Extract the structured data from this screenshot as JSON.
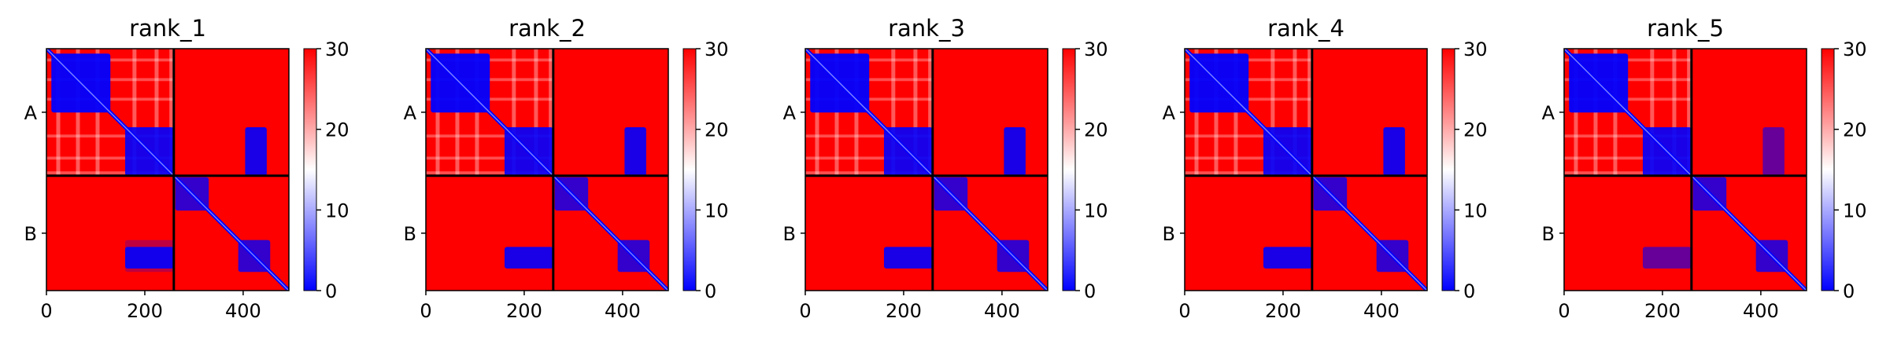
{
  "chart_data": [
    {
      "type": "heatmap",
      "title": "rank_1",
      "xlabel": "",
      "ylabel": "",
      "xlim": [
        0,
        493
      ],
      "x_ticks": [
        0,
        200,
        400
      ],
      "y_tick_labels": [
        "A",
        "B"
      ],
      "chain_break": 259,
      "colorbar": {
        "min": 0,
        "max": 30,
        "ticks": [
          0,
          10,
          20,
          30
        ],
        "colormap": "bwr"
      },
      "blue_blocks": [
        [
          10,
          130,
          10,
          130,
          0.95
        ],
        [
          160,
          259,
          160,
          259,
          0.9
        ],
        [
          262,
          330,
          262,
          330,
          0.8
        ],
        [
          390,
          455,
          390,
          455,
          0.8
        ],
        [
          160,
          259,
          404,
          448,
          0.9
        ],
        [
          404,
          448,
          160,
          259,
          0.9
        ],
        [
          160,
          259,
          390,
          455,
          0.25
        ]
      ],
      "diagonal": true
    },
    {
      "type": "heatmap",
      "title": "rank_2",
      "xlabel": "",
      "ylabel": "",
      "xlim": [
        0,
        493
      ],
      "x_ticks": [
        0,
        200,
        400
      ],
      "y_tick_labels": [
        "A",
        "B"
      ],
      "chain_break": 259,
      "colorbar": {
        "min": 0,
        "max": 30,
        "ticks": [
          0,
          10,
          20,
          30
        ],
        "colormap": "bwr"
      },
      "blue_blocks": [
        [
          10,
          130,
          10,
          130,
          0.95
        ],
        [
          160,
          259,
          160,
          259,
          0.9
        ],
        [
          262,
          330,
          262,
          330,
          0.8
        ],
        [
          390,
          455,
          390,
          455,
          0.8
        ],
        [
          160,
          259,
          404,
          448,
          0.9
        ],
        [
          404,
          448,
          160,
          259,
          0.9
        ]
      ],
      "diagonal": true
    },
    {
      "type": "heatmap",
      "title": "rank_3",
      "xlabel": "",
      "ylabel": "",
      "xlim": [
        0,
        493
      ],
      "x_ticks": [
        0,
        200,
        400
      ],
      "y_tick_labels": [
        "A",
        "B"
      ],
      "chain_break": 259,
      "colorbar": {
        "min": 0,
        "max": 30,
        "ticks": [
          0,
          10,
          20,
          30
        ],
        "colormap": "bwr"
      },
      "blue_blocks": [
        [
          10,
          130,
          10,
          130,
          0.95
        ],
        [
          160,
          259,
          160,
          259,
          0.9
        ],
        [
          262,
          330,
          262,
          330,
          0.8
        ],
        [
          390,
          455,
          390,
          455,
          0.8
        ],
        [
          160,
          259,
          404,
          448,
          0.9
        ],
        [
          404,
          448,
          160,
          259,
          0.9
        ]
      ],
      "diagonal": true
    },
    {
      "type": "heatmap",
      "title": "rank_4",
      "xlabel": "",
      "ylabel": "",
      "xlim": [
        0,
        493
      ],
      "x_ticks": [
        0,
        200,
        400
      ],
      "y_tick_labels": [
        "A",
        "B"
      ],
      "chain_break": 259,
      "colorbar": {
        "min": 0,
        "max": 30,
        "ticks": [
          0,
          10,
          20,
          30
        ],
        "colormap": "bwr"
      },
      "blue_blocks": [
        [
          10,
          130,
          10,
          130,
          0.95
        ],
        [
          160,
          259,
          160,
          259,
          0.9
        ],
        [
          262,
          330,
          262,
          330,
          0.8
        ],
        [
          390,
          455,
          390,
          455,
          0.8
        ],
        [
          160,
          259,
          404,
          448,
          0.9
        ],
        [
          404,
          448,
          160,
          259,
          0.9
        ]
      ],
      "diagonal": true
    },
    {
      "type": "heatmap",
      "title": "rank_5",
      "xlabel": "",
      "ylabel": "",
      "xlim": [
        0,
        493
      ],
      "x_ticks": [
        0,
        200,
        400
      ],
      "y_tick_labels": [
        "A",
        "B"
      ],
      "chain_break": 259,
      "colorbar": {
        "min": 0,
        "max": 30,
        "ticks": [
          0,
          10,
          20,
          30
        ],
        "colormap": "bwr"
      },
      "blue_blocks": [
        [
          10,
          130,
          10,
          130,
          0.95
        ],
        [
          160,
          259,
          160,
          259,
          0.9
        ],
        [
          262,
          330,
          262,
          330,
          0.8
        ],
        [
          390,
          455,
          390,
          455,
          0.8
        ],
        [
          160,
          259,
          404,
          448,
          0.6
        ],
        [
          404,
          448,
          160,
          259,
          0.6
        ]
      ],
      "diagonal": true
    }
  ],
  "colors": {
    "high": "#ff0000",
    "mid": "#ffffff",
    "low": "#0000ff",
    "chain_line": "#000000"
  }
}
